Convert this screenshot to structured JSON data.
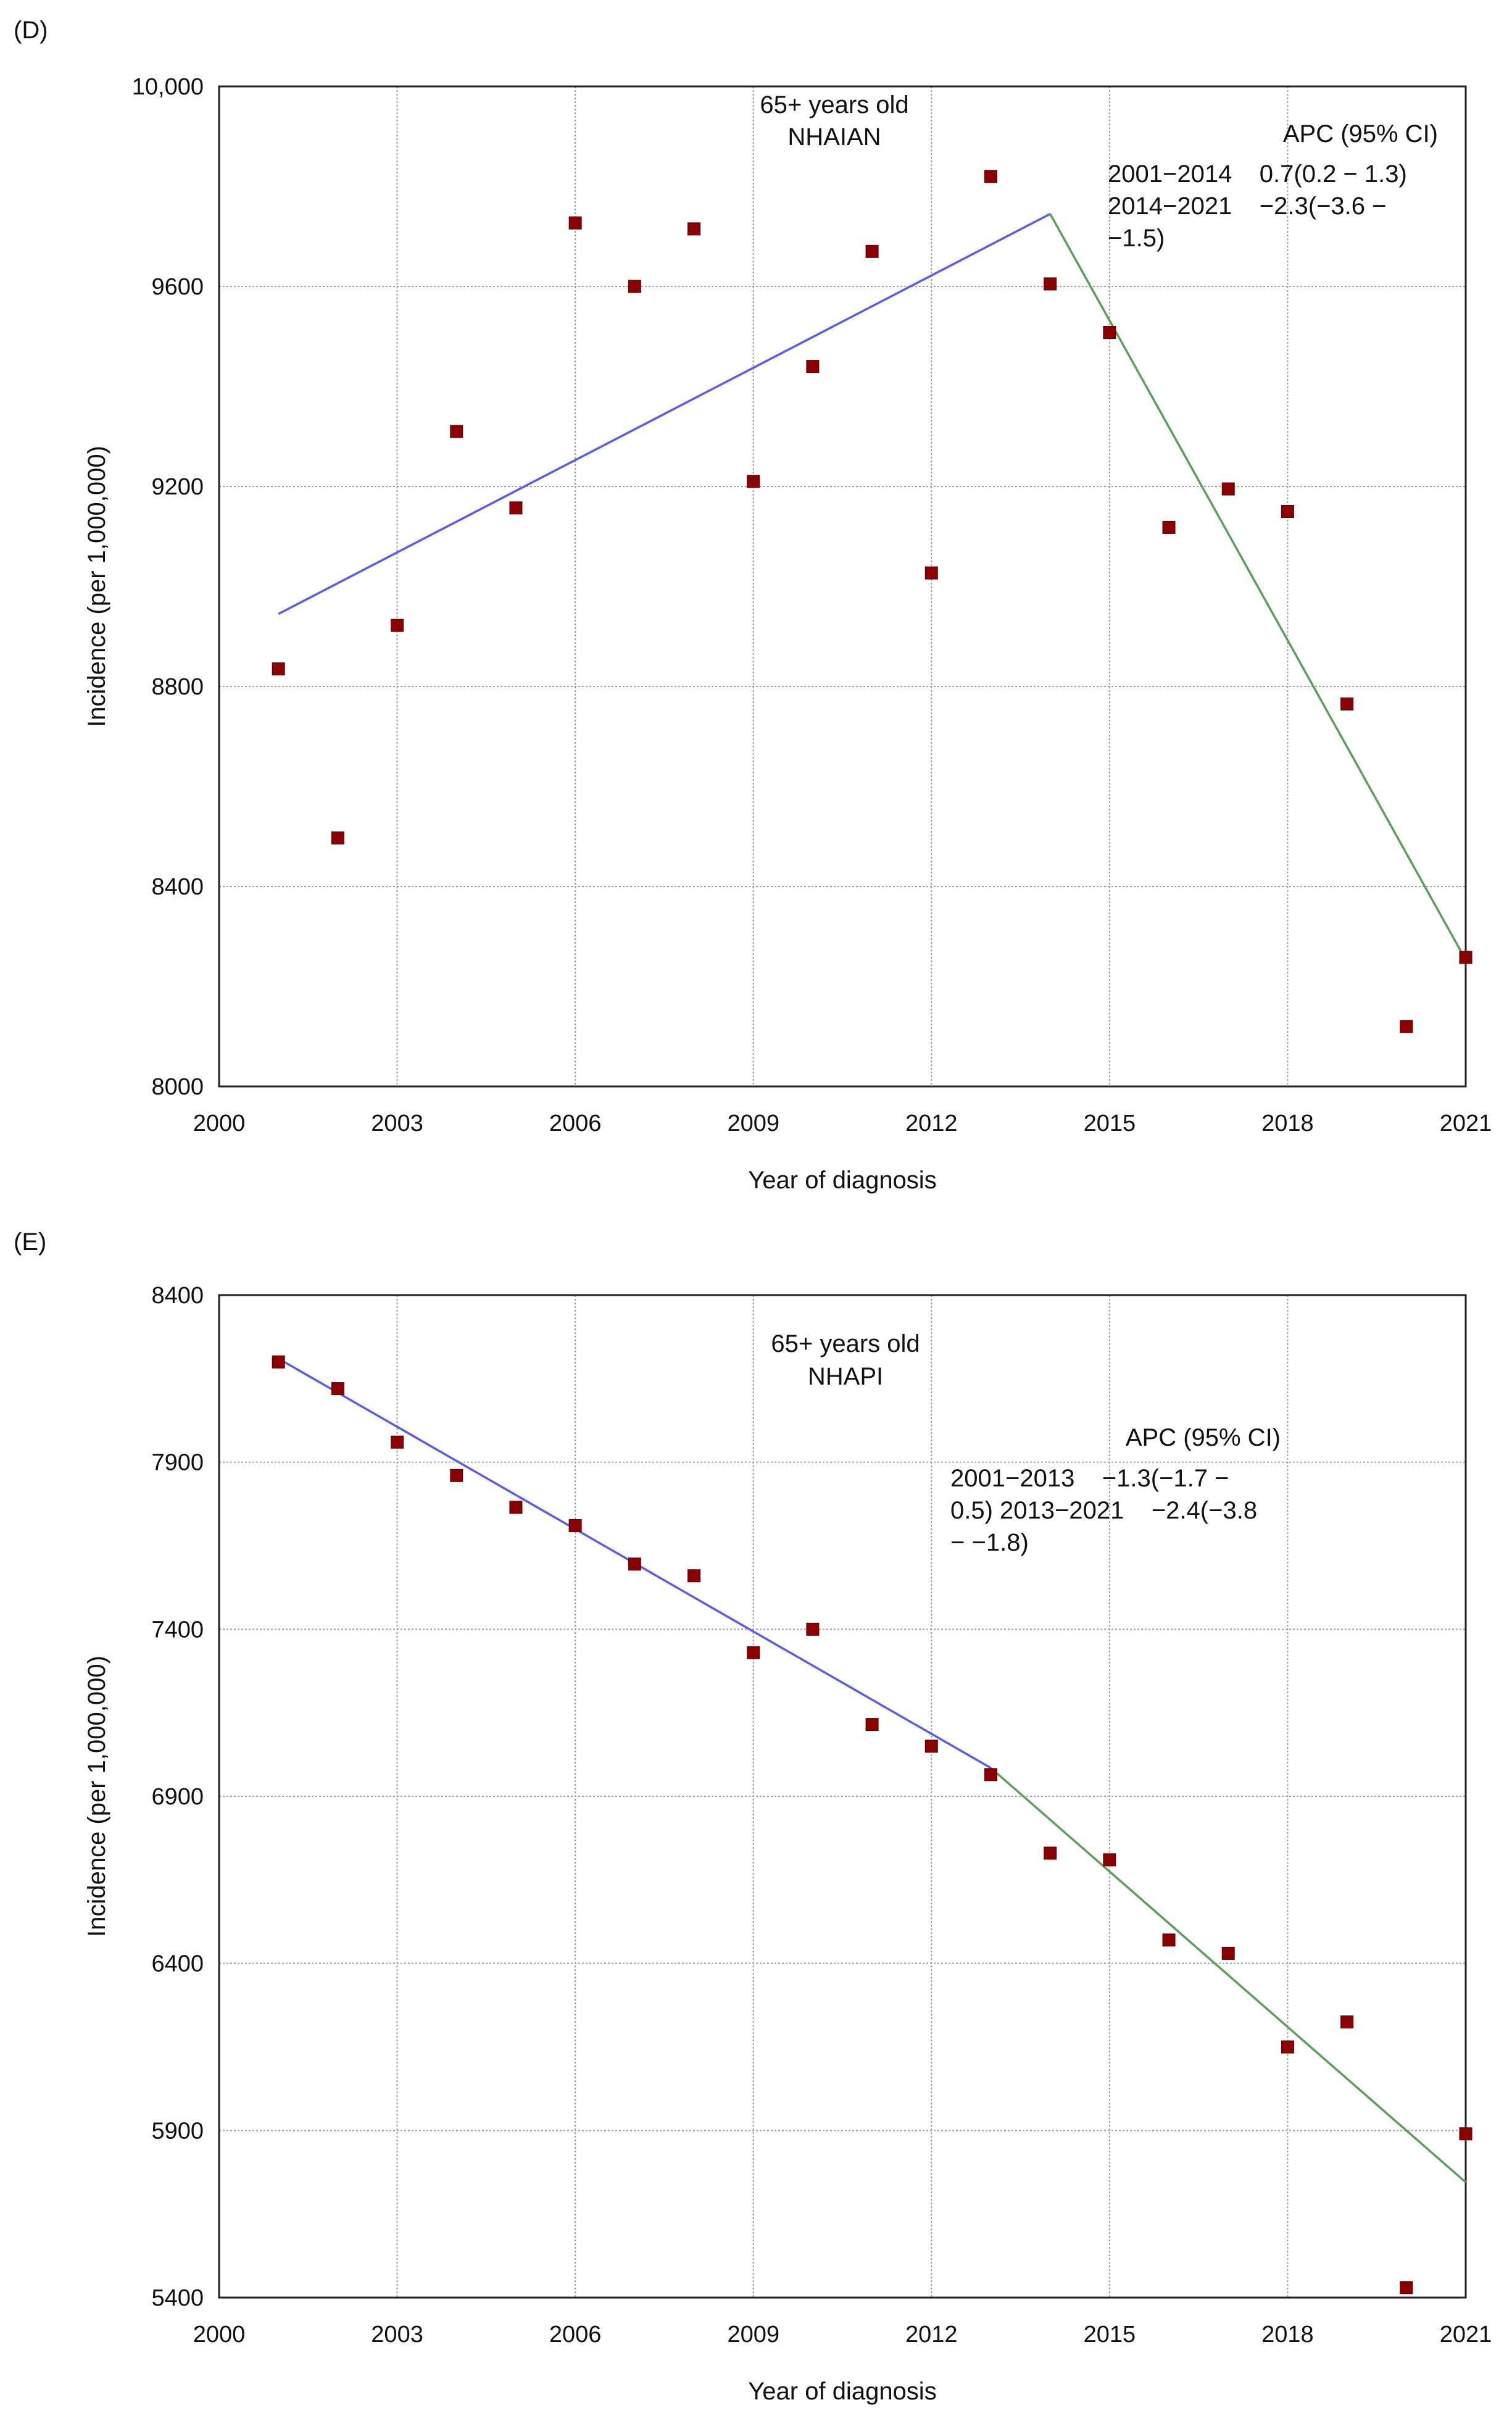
{
  "chart_data": [
    {
      "panel": "(D)",
      "type": "scatter",
      "title": "",
      "annotation_lines": [
        "65+ years old",
        "NHAIAN"
      ],
      "apc_header": "APC (95% CI)",
      "apc_lines": [
        "2001−2014    0.7(0.2 − 1.3)",
        "2014−2021    −2.3(−3.6 −",
        "−1.5)"
      ],
      "xlabel": "Year of diagnosis",
      "ylabel": "Incidence (per 1,000,000)",
      "xlim": [
        2000,
        2021
      ],
      "ylim": [
        8000,
        10000
      ],
      "xticks": [
        2000,
        2003,
        2006,
        2009,
        2012,
        2015,
        2018,
        2021
      ],
      "yticks": [
        8000,
        8400,
        8800,
        9200,
        9600,
        10000
      ],
      "ytick_labels": [
        "8000",
        "8400",
        "8800",
        "9200",
        "9600",
        "10,000"
      ],
      "x": [
        2001,
        2002,
        2003,
        2004,
        2005,
        2006,
        2007,
        2008,
        2009,
        2010,
        2011,
        2012,
        2013,
        2014,
        2015,
        2016,
        2017,
        2018,
        2019,
        2020,
        2021
      ],
      "values": [
        8835,
        8497,
        8922,
        9310,
        9157,
        9727,
        9600,
        9715,
        9210,
        9440,
        9670,
        9027,
        9820,
        9605,
        9508,
        9118,
        9195,
        9150,
        8765,
        8120,
        8258
      ],
      "series": [
        {
          "name": "Observed",
          "style": "markers",
          "color": "#8b0000"
        },
        {
          "name": "2001-2014 trend",
          "style": "line",
          "color": "#5b5bf0",
          "x": [
            2001,
            2014
          ],
          "values": [
            8945,
            9745
          ]
        },
        {
          "name": "2014-2021 trend",
          "style": "line",
          "color": "#5aa05a",
          "x": [
            2014,
            2021
          ],
          "values": [
            9745,
            8253
          ]
        }
      ]
    },
    {
      "panel": "(E)",
      "type": "scatter",
      "title": "",
      "annotation_lines": [
        "65+ years old",
        "NHAPI"
      ],
      "apc_header": "APC (95% CI)",
      "apc_lines": [
        "2001−2013    −1.3(−1.7 −",
        "0.5) 2013−2021    −2.4(−3.8",
        "− −1.8)"
      ],
      "xlabel": "Year of diagnosis",
      "ylabel": "Incidence (per 1,000,000)",
      "xlim": [
        2000,
        2021
      ],
      "ylim": [
        5400,
        8400
      ],
      "xticks": [
        2000,
        2003,
        2006,
        2009,
        2012,
        2015,
        2018,
        2021
      ],
      "yticks": [
        5400,
        5900,
        6400,
        6900,
        7400,
        7900,
        8400
      ],
      "ytick_labels": [
        "5400",
        "5900",
        "6400",
        "6900",
        "7400",
        "7900",
        "8400"
      ],
      "x": [
        2001,
        2002,
        2003,
        2004,
        2005,
        2006,
        2007,
        2008,
        2009,
        2010,
        2011,
        2012,
        2013,
        2014,
        2015,
        2016,
        2017,
        2018,
        2019,
        2020,
        2021
      ],
      "values": [
        8200,
        8120,
        7960,
        7860,
        7765,
        7710,
        7595,
        7560,
        7330,
        7400,
        7115,
        7050,
        6965,
        6730,
        6710,
        6470,
        6430,
        6150,
        6225,
        5430,
        5890
      ],
      "series": [
        {
          "name": "Observed",
          "style": "markers",
          "color": "#8b0000"
        },
        {
          "name": "2001-2013 trend",
          "style": "line",
          "color": "#5b5bf0",
          "x": [
            2001,
            2013
          ],
          "values": [
            8210,
            6985
          ]
        },
        {
          "name": "2013-2021 trend",
          "style": "line",
          "color": "#5aa05a",
          "x": [
            2013,
            2021
          ],
          "values": [
            6985,
            5745
          ]
        }
      ]
    }
  ]
}
